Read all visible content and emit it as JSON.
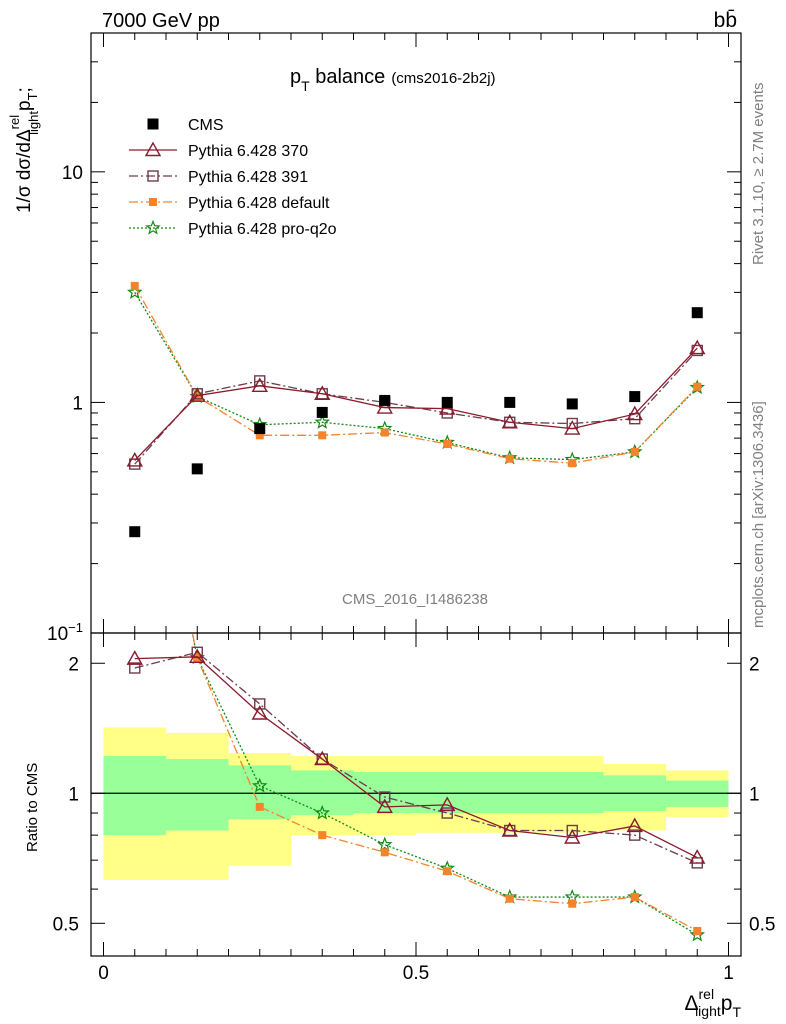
{
  "header": {
    "energy": "7000 GeV pp",
    "process": "bb̄",
    "title_main": "p",
    "title_sub": "T",
    "title_rest": " balance",
    "title_tag": "(cms2016-2b2j)",
    "analysis_label": "CMS_2016_I1486238",
    "side_rivet": "Rivet 3.1.10, ≥ 2.7M events",
    "side_mcplots": "mcplots.cern.ch [arXiv:1306.3436]"
  },
  "axes": {
    "ylabel_main": "1/σ dσ/dΔ",
    "ylabel_main_sup": "rel",
    "ylabel_main_sub": "light",
    "ylabel_main_tail": "p",
    "ylabel_main_tail_sub": "T",
    "ylabel_main_end": ";",
    "ylabel_ratio": "Ratio to CMS",
    "xlabel": "Δ",
    "xlabel_sup": "rel",
    "xlabel_sub": "light",
    "xlabel_tail": "p",
    "xlabel_tail_sub": "T",
    "main_ticks": [
      {
        "value": 0.1,
        "base": "10",
        "exp": "−1"
      },
      {
        "value": 1,
        "base": "1",
        "exp": ""
      },
      {
        "value": 10,
        "base": "10",
        "exp": ""
      }
    ],
    "ratio_ticks": [
      {
        "value": 0.5,
        "label": "0.5"
      },
      {
        "value": 1,
        "label": "1"
      },
      {
        "value": 2,
        "label": "2"
      }
    ],
    "x_ticks": [
      {
        "value": 0,
        "label": "0"
      },
      {
        "value": 0.5,
        "label": "0.5"
      },
      {
        "value": 1,
        "label": "1"
      }
    ]
  },
  "chart_data": {
    "type": "scatter",
    "x": [
      0.05,
      0.15,
      0.25,
      0.35,
      0.45,
      0.55,
      0.65,
      0.75,
      0.85,
      0.95
    ],
    "xlim": [
      -0.02,
      1.02
    ],
    "ylim_main": [
      0.1,
      40
    ],
    "ylog_main": true,
    "ylim_ratio": [
      0.42,
      2.35
    ],
    "ylog_ratio": true,
    "legend_position": "top-left",
    "series": [
      {
        "name": "CMS",
        "color": "#000000",
        "marker": "square-filled",
        "line": "none",
        "values": [
          0.275,
          0.515,
          0.77,
          0.905,
          1.02,
          1.0,
          1.0,
          0.985,
          1.06,
          2.45
        ]
      },
      {
        "name": "Pythia 6.428 370",
        "color": "#8b1a2b",
        "marker": "triangle-open",
        "line": "solid",
        "values": [
          0.56,
          1.07,
          1.18,
          1.09,
          0.95,
          0.94,
          0.82,
          0.77,
          0.89,
          1.72
        ]
      },
      {
        "name": "Pythia 6.428 391",
        "color": "#6e3b4e",
        "marker": "square-open",
        "line": "dashdot",
        "values": [
          0.54,
          1.09,
          1.24,
          1.09,
          1.0,
          0.9,
          0.82,
          0.81,
          0.85,
          1.68
        ]
      },
      {
        "name": "Pythia 6.428 default",
        "color": "#f5832b",
        "marker": "square-small-filled",
        "line": "dashdot",
        "values": [
          3.2,
          1.06,
          0.72,
          0.72,
          0.74,
          0.66,
          0.57,
          0.545,
          0.61,
          1.17
        ]
      },
      {
        "name": "Pythia 6.428 pro-q2o",
        "color": "#138a13",
        "marker": "star-open",
        "line": "dotted",
        "values": [
          3.0,
          1.06,
          0.8,
          0.82,
          0.77,
          0.67,
          0.575,
          0.565,
          0.61,
          1.16
        ]
      }
    ],
    "ratio_series": [
      {
        "name": "Pythia 6.428 370",
        "values": [
          2.05,
          2.07,
          1.53,
          1.2,
          0.93,
          0.94,
          0.82,
          0.79,
          0.84,
          0.71
        ]
      },
      {
        "name": "Pythia 6.428 391",
        "values": [
          1.95,
          2.12,
          1.61,
          1.2,
          0.98,
          0.9,
          0.82,
          0.82,
          0.8,
          0.69
        ]
      },
      {
        "name": "Pythia 6.428 default",
        "values": [
          11.6,
          2.06,
          0.93,
          0.8,
          0.73,
          0.66,
          0.57,
          0.555,
          0.575,
          0.48
        ]
      },
      {
        "name": "Pythia 6.428 pro-q2o",
        "values": [
          10.9,
          2.06,
          1.04,
          0.9,
          0.76,
          0.67,
          0.575,
          0.575,
          0.575,
          0.47
        ]
      }
    ],
    "bands": {
      "edges": [
        0.0,
        0.1,
        0.2,
        0.3,
        0.4,
        0.5,
        0.6,
        0.7,
        0.8,
        0.9,
        1.0
      ],
      "inner": [
        [
          0.8,
          1.22
        ],
        [
          0.82,
          1.2
        ],
        [
          0.87,
          1.16
        ],
        [
          0.89,
          1.13
        ],
        [
          0.9,
          1.12
        ],
        [
          0.9,
          1.12
        ],
        [
          0.9,
          1.12
        ],
        [
          0.9,
          1.12
        ],
        [
          0.91,
          1.1
        ],
        [
          0.93,
          1.07
        ]
      ],
      "outer": [
        [
          0.63,
          1.42
        ],
        [
          0.63,
          1.38
        ],
        [
          0.68,
          1.24
        ],
        [
          0.8,
          1.22
        ],
        [
          0.8,
          1.22
        ],
        [
          0.81,
          1.22
        ],
        [
          0.81,
          1.22
        ],
        [
          0.81,
          1.22
        ],
        [
          0.82,
          1.17
        ],
        [
          0.88,
          1.13
        ]
      ],
      "inner_color": "#99ff99",
      "outer_color": "#ffff88"
    }
  }
}
